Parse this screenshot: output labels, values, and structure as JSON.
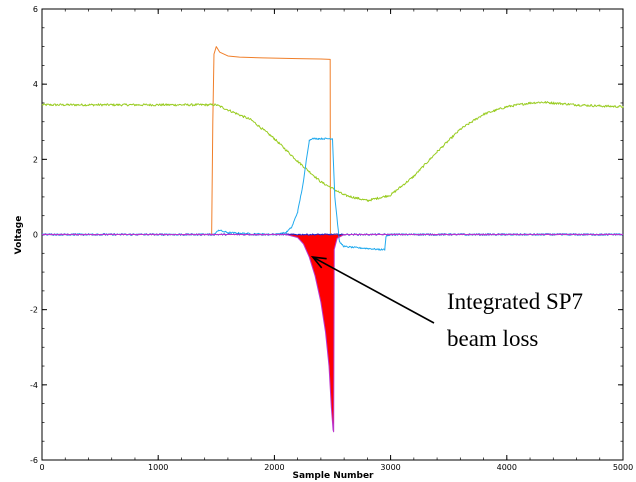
{
  "chart_data": {
    "type": "line",
    "title": "",
    "xlabel": "Sample Number",
    "ylabel": "Voltage",
    "xlim": [
      0,
      5000
    ],
    "ylim": [
      -6,
      6
    ],
    "x_ticks": [
      "0",
      "1000",
      "2000",
      "3000",
      "4000",
      "5000"
    ],
    "y_ticks": [
      "-6",
      "-4",
      "-2",
      "0",
      "2",
      "4",
      "6"
    ],
    "grid": false,
    "legend": "none",
    "series": [
      {
        "color": "#f07f2a",
        "x": [
          0,
          1460,
          1470,
          1480,
          1500,
          1530,
          1600,
          1700,
          1900,
          2200,
          2400,
          2480,
          2482,
          2500,
          2600,
          3000,
          4000,
          5000
        ],
        "y": [
          0.0,
          0.0,
          3.0,
          4.8,
          5.0,
          4.85,
          4.75,
          4.72,
          4.7,
          4.68,
          4.67,
          4.66,
          0.0,
          0.0,
          0.0,
          0.0,
          0.0,
          0.0
        ]
      },
      {
        "color": "#99cc22",
        "x": [
          0,
          1000,
          1500,
          1800,
          2000,
          2200,
          2400,
          2600,
          2800,
          3000,
          3200,
          3400,
          3600,
          3800,
          4000,
          4200,
          4300,
          4400,
          4600,
          4800,
          5000
        ],
        "y": [
          3.45,
          3.45,
          3.45,
          3.05,
          2.55,
          1.95,
          1.4,
          1.05,
          0.9,
          1.05,
          1.55,
          2.2,
          2.8,
          3.2,
          3.4,
          3.5,
          3.52,
          3.5,
          3.45,
          3.42,
          3.4
        ],
        "noise": 0.03
      },
      {
        "color": "#22aaee",
        "x": [
          0,
          1480,
          1500,
          1520,
          1560,
          1600,
          1800,
          2000,
          2100,
          2150,
          2200,
          2250,
          2280,
          2300,
          2320,
          2380,
          2500,
          2520,
          2560,
          2600,
          2700,
          2800,
          2900,
          2950,
          2960,
          3000,
          4000,
          5000
        ],
        "y": [
          0.0,
          0.0,
          0.05,
          0.12,
          0.08,
          0.05,
          0.02,
          0.0,
          0.05,
          0.2,
          0.6,
          1.4,
          2.1,
          2.5,
          2.55,
          2.55,
          2.55,
          1.0,
          -0.2,
          -0.32,
          -0.35,
          -0.37,
          -0.4,
          -0.4,
          -0.05,
          0.0,
          0.0,
          0.0
        ],
        "noise": 0.02
      },
      {
        "color": "#2222cc",
        "x": [
          0,
          5000
        ],
        "y": [
          0.0,
          0.0
        ],
        "noise": 0.018
      },
      {
        "color": "#ff0000",
        "fill": true,
        "x": [
          0,
          2100,
          2200,
          2250,
          2300,
          2350,
          2400,
          2440,
          2470,
          2490,
          2505,
          2510,
          2515,
          2540,
          2600,
          5000
        ],
        "y": [
          0.0,
          0.0,
          -0.08,
          -0.25,
          -0.6,
          -1.1,
          -1.8,
          -2.6,
          -3.5,
          -4.6,
          -5.2,
          -5.25,
          -0.4,
          -0.1,
          0.0,
          0.0
        ]
      },
      {
        "color": "#bb33cc",
        "x": [
          0,
          2100,
          2200,
          2250,
          2300,
          2350,
          2400,
          2440,
          2470,
          2490,
          2505,
          2510,
          2515,
          2540,
          2600,
          5000
        ],
        "y": [
          0.0,
          0.0,
          -0.08,
          -0.25,
          -0.6,
          -1.1,
          -1.8,
          -2.6,
          -3.5,
          -4.6,
          -5.2,
          -5.25,
          -0.4,
          -0.1,
          0.0,
          0.0
        ]
      }
    ],
    "annotations": [
      {
        "text_lines": [
          "Integrated SP7",
          "beam loss"
        ],
        "arrow_to": [
          2330,
          -0.6
        ]
      }
    ]
  }
}
